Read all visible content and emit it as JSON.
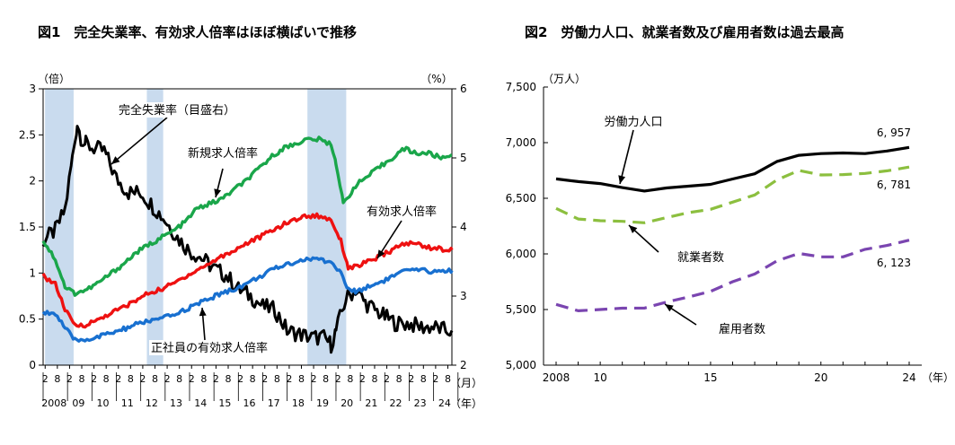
{
  "figure1": {
    "title": "図1　完全失業率、有効求人倍率はほぼ横ばいで推移",
    "left_unit": "（倍）",
    "right_unit": "（%）",
    "month_unit": "（月）",
    "year_unit": "（年）"
  },
  "figure2": {
    "title": "図2　労働力人口、就業者数及び雇用者数は過去最高",
    "y_unit": "（万人）",
    "year_unit": "（年）"
  },
  "chart_data": [
    {
      "type": "line",
      "left_axis": {
        "ylim": [
          0,
          3
        ],
        "ticks": [
          "0",
          "0.5",
          "1",
          "1.5",
          "2",
          "2.5",
          "3"
        ]
      },
      "right_axis": {
        "ylim": [
          2,
          6
        ],
        "ticks": [
          "2",
          "3",
          "4",
          "5",
          "6"
        ]
      },
      "x_month_ticks": [
        "2",
        "8",
        "2",
        "8",
        "2",
        "8",
        "2",
        "8",
        "2",
        "8",
        "2",
        "8",
        "2",
        "8",
        "2",
        "8",
        "2",
        "8",
        "2",
        "8",
        "2",
        "8",
        "2",
        "8",
        "2",
        "8",
        "2",
        "8",
        "2",
        "8",
        "2",
        "8",
        "2",
        "8"
      ],
      "x_year_labels": [
        "2008",
        "09",
        "10",
        "11",
        "12",
        "13",
        "14",
        "15",
        "16",
        "17",
        "18",
        "19",
        "20",
        "21",
        "22",
        "23",
        "24"
      ],
      "x_range": [
        2008.0,
        2024.75
      ],
      "shaded_periods": [
        [
          2008.08,
          2009.25
        ],
        [
          2012.25,
          2012.92
        ],
        [
          2018.83,
          2020.42
        ]
      ],
      "series": [
        {
          "name": "完全失業率（目盛右）",
          "axis": "right",
          "color": "#000000",
          "x": [
            2008.0,
            2008.5,
            2008.9,
            2009.2,
            2009.4,
            2009.55,
            2009.75,
            2010.0,
            2010.5,
            2011.0,
            2011.5,
            2012.0,
            2012.5,
            2013.0,
            2013.5,
            2014.0,
            2014.5,
            2015.0,
            2015.5,
            2016.0,
            2016.5,
            2017.0,
            2017.5,
            2018.0,
            2018.5,
            2019.0,
            2019.5,
            2019.8,
            2020.0,
            2020.4,
            2020.8,
            2021.2,
            2021.6,
            2022.0,
            2022.5,
            2023.0,
            2023.5,
            2024.0,
            2024.5,
            2024.75
          ],
          "values": [
            3.8,
            3.95,
            4.25,
            5.0,
            5.5,
            5.3,
            5.2,
            5.15,
            5.1,
            4.7,
            4.5,
            4.5,
            4.3,
            4.1,
            3.85,
            3.65,
            3.55,
            3.4,
            3.3,
            3.1,
            3.0,
            2.85,
            2.8,
            2.5,
            2.45,
            2.4,
            2.4,
            2.3,
            2.5,
            2.95,
            3.1,
            2.9,
            2.8,
            2.7,
            2.6,
            2.6,
            2.55,
            2.55,
            2.5,
            2.5
          ]
        },
        {
          "name": "新規求人倍率",
          "axis": "left",
          "color": "#1aa64a",
          "x": [
            2008.0,
            2008.5,
            2008.9,
            2009.3,
            2009.8,
            2010.3,
            2010.8,
            2011.3,
            2011.8,
            2012.3,
            2012.8,
            2013.3,
            2013.8,
            2014.3,
            2014.8,
            2015.3,
            2015.8,
            2016.3,
            2016.8,
            2017.3,
            2017.8,
            2018.3,
            2018.8,
            2019.3,
            2019.8,
            2020.0,
            2020.3,
            2020.8,
            2021.3,
            2021.8,
            2022.3,
            2022.8,
            2023.3,
            2023.8,
            2024.3,
            2024.75
          ],
          "values": [
            1.35,
            1.15,
            0.85,
            0.78,
            0.82,
            0.9,
            1.0,
            1.1,
            1.22,
            1.3,
            1.38,
            1.45,
            1.55,
            1.7,
            1.75,
            1.8,
            1.9,
            2.0,
            2.12,
            2.25,
            2.35,
            2.4,
            2.45,
            2.45,
            2.4,
            2.2,
            1.75,
            1.95,
            2.05,
            2.15,
            2.25,
            2.35,
            2.3,
            2.3,
            2.25,
            2.28
          ]
        },
        {
          "name": "有効求人倍率",
          "axis": "left",
          "color": "#ee1111",
          "x": [
            2008.0,
            2008.5,
            2008.9,
            2009.3,
            2009.8,
            2010.3,
            2010.8,
            2011.3,
            2011.8,
            2012.3,
            2012.8,
            2013.3,
            2013.8,
            2014.3,
            2014.8,
            2015.3,
            2015.8,
            2016.3,
            2016.8,
            2017.3,
            2017.8,
            2018.3,
            2018.8,
            2019.3,
            2019.8,
            2020.2,
            2020.5,
            2020.8,
            2021.3,
            2021.8,
            2022.3,
            2022.8,
            2023.3,
            2023.8,
            2024.3,
            2024.75
          ],
          "values": [
            0.97,
            0.88,
            0.6,
            0.43,
            0.44,
            0.5,
            0.57,
            0.63,
            0.7,
            0.78,
            0.82,
            0.88,
            0.96,
            1.03,
            1.1,
            1.18,
            1.24,
            1.32,
            1.38,
            1.45,
            1.52,
            1.58,
            1.62,
            1.62,
            1.58,
            1.35,
            1.06,
            1.07,
            1.12,
            1.18,
            1.25,
            1.32,
            1.32,
            1.28,
            1.26,
            1.25
          ]
        },
        {
          "name": "正社員の有効求人倍率",
          "axis": "left",
          "color": "#1870d0",
          "x": [
            2008.0,
            2008.5,
            2008.9,
            2009.3,
            2009.8,
            2010.3,
            2010.8,
            2011.3,
            2011.8,
            2012.3,
            2012.8,
            2013.3,
            2013.8,
            2014.3,
            2014.8,
            2015.3,
            2015.8,
            2016.3,
            2016.8,
            2017.3,
            2017.8,
            2018.3,
            2018.8,
            2019.3,
            2019.8,
            2020.2,
            2020.5,
            2020.8,
            2021.3,
            2021.8,
            2022.3,
            2022.8,
            2023.3,
            2023.8,
            2024.3,
            2024.75
          ],
          "values": [
            0.58,
            0.56,
            0.4,
            0.27,
            0.28,
            0.31,
            0.35,
            0.39,
            0.44,
            0.48,
            0.5,
            0.54,
            0.6,
            0.66,
            0.72,
            0.78,
            0.82,
            0.88,
            0.95,
            1.02,
            1.08,
            1.12,
            1.15,
            1.15,
            1.12,
            1.0,
            0.82,
            0.8,
            0.85,
            0.9,
            0.96,
            1.02,
            1.03,
            1.02,
            1.02,
            1.03
          ]
        }
      ],
      "annotations": [
        "完全失業率（目盛右）",
        "新規求人倍率",
        "有効求人倍率",
        "正社員の有効求人倍率"
      ]
    },
    {
      "type": "line",
      "ylim": [
        5000,
        7500
      ],
      "yticks": [
        "5,000",
        "5,500",
        "6,000",
        "6,500",
        "7,000",
        "7,500"
      ],
      "x_range": [
        2008,
        2024
      ],
      "xticks": [
        "2008",
        "10",
        "15",
        "20",
        "24"
      ],
      "x_tick_years": [
        2008,
        2010,
        2015,
        2020,
        2024
      ],
      "series": [
        {
          "name": "労働力人口",
          "style": "solid",
          "color": "#000000",
          "x": [
            2008,
            2009,
            2010,
            2011,
            2012,
            2013,
            2014,
            2015,
            2016,
            2017,
            2018,
            2019,
            2020,
            2021,
            2022,
            2023,
            2024
          ],
          "values": [
            6674,
            6650,
            6632,
            6596,
            6565,
            6593,
            6609,
            6625,
            6673,
            6720,
            6830,
            6886,
            6902,
            6907,
            6902,
            6925,
            6957
          ],
          "end_label": "6, 957"
        },
        {
          "name": "就業者数",
          "style": "dashed",
          "color": "#8cbf3f",
          "x": [
            2008,
            2009,
            2010,
            2011,
            2012,
            2013,
            2014,
            2015,
            2016,
            2017,
            2018,
            2019,
            2020,
            2021,
            2022,
            2023,
            2024
          ],
          "values": [
            6409,
            6314,
            6298,
            6293,
            6280,
            6326,
            6371,
            6401,
            6465,
            6530,
            6664,
            6750,
            6710,
            6713,
            6723,
            6747,
            6781
          ],
          "end_label": "6, 781"
        },
        {
          "name": "雇用者数",
          "style": "dashed",
          "color": "#7a45b0",
          "x": [
            2008,
            2009,
            2010,
            2011,
            2012,
            2013,
            2014,
            2015,
            2016,
            2017,
            2018,
            2019,
            2020,
            2021,
            2022,
            2023,
            2024
          ],
          "values": [
            5546,
            5489,
            5500,
            5512,
            5513,
            5567,
            5613,
            5663,
            5750,
            5819,
            5936,
            6004,
            5973,
            5973,
            6041,
            6076,
            6123
          ],
          "end_label": "6, 123"
        }
      ]
    }
  ]
}
